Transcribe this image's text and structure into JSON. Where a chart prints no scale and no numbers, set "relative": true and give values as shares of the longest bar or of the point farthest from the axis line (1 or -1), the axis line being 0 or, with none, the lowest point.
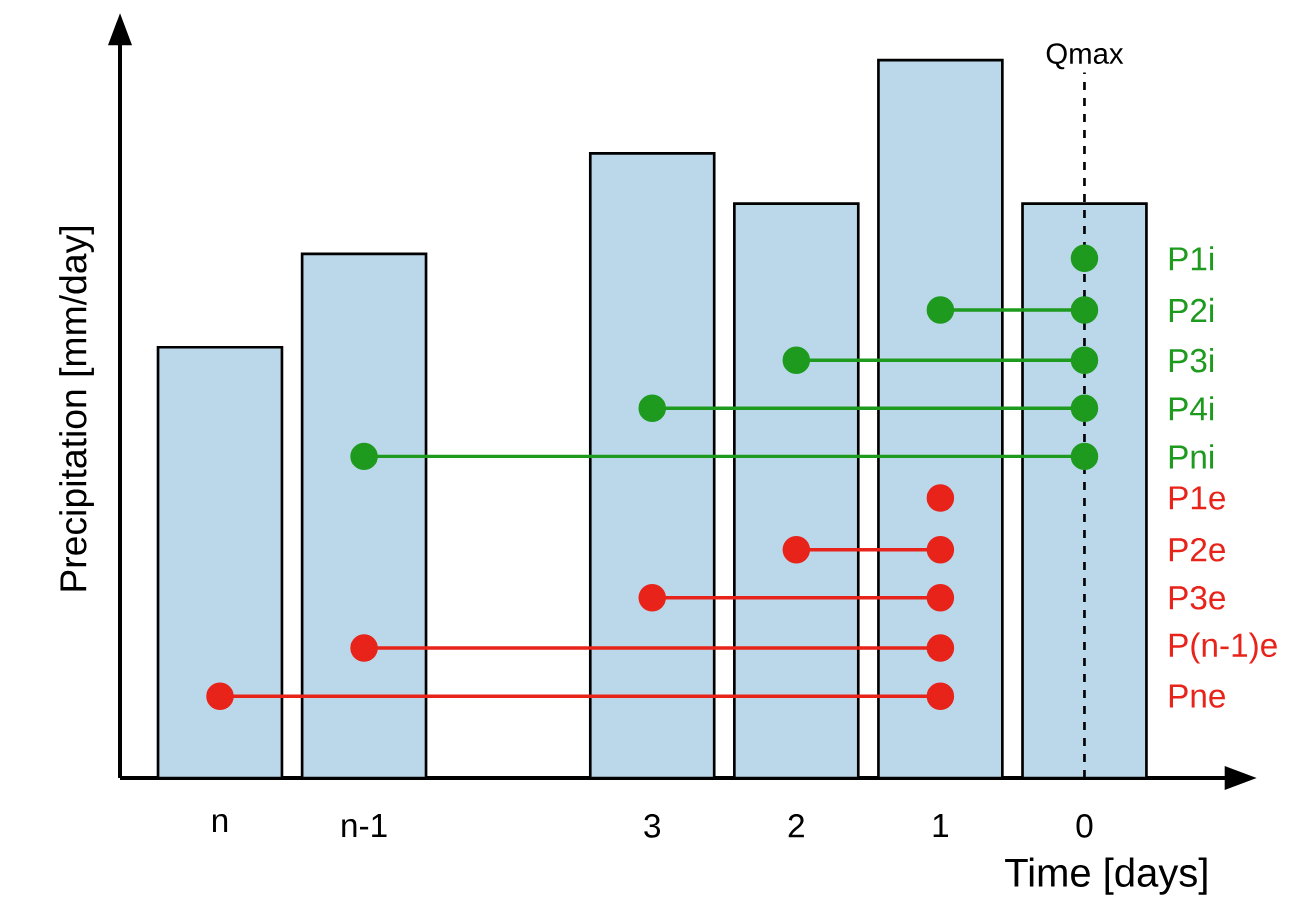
{
  "chart_data": {
    "type": "bar",
    "relative": true,
    "xlabel": "Time [days]",
    "ylabel": "Precipitation [mm/day]",
    "categories": [
      "n",
      "n-1",
      null,
      "3",
      "2",
      "1",
      "0"
    ],
    "marker": "circle",
    "ref_lines": [
      {
        "axis": "x",
        "value": "0",
        "label": "Qmax",
        "line_style": "dashed",
        "color": "#000000"
      }
    ],
    "series": [
      {
        "color": "#bad8ea",
        "values": [
          0.6,
          0.73,
          null,
          0.87,
          0.8,
          1,
          0.8
        ]
      },
      {
        "type": "line",
        "name": "P1i",
        "color": "#1e9a1e",
        "x": [
          "0"
        ],
        "values": [
          0.724
        ]
      },
      {
        "type": "line",
        "name": "P2i",
        "color": "#1e9a1e",
        "x": [
          "1",
          "0"
        ],
        "values": [
          0.652,
          0.652
        ]
      },
      {
        "type": "line",
        "name": "P3i",
        "color": "#1e9a1e",
        "x": [
          "2",
          "0"
        ],
        "values": [
          0.582,
          0.582
        ]
      },
      {
        "type": "line",
        "name": "P4i",
        "color": "#1e9a1e",
        "x": [
          "3",
          "0"
        ],
        "values": [
          0.515,
          0.515
        ]
      },
      {
        "type": "line",
        "name": "Pni",
        "color": "#1e9a1e",
        "x": [
          "n-1",
          "0"
        ],
        "values": [
          0.448,
          0.448
        ]
      },
      {
        "type": "line",
        "name": "P1e",
        "color": "#e8231a",
        "x": [
          "1"
        ],
        "values": [
          0.39
        ]
      },
      {
        "type": "line",
        "name": "P2e",
        "color": "#e8231a",
        "x": [
          "2",
          "1"
        ],
        "values": [
          0.318,
          0.318
        ]
      },
      {
        "type": "line",
        "name": "P3e",
        "color": "#e8231a",
        "x": [
          "3",
          "1"
        ],
        "values": [
          0.251,
          0.251
        ]
      },
      {
        "type": "line",
        "name": "P(n-1)e",
        "color": "#e8231a",
        "x": [
          "n-1",
          "1"
        ],
        "values": [
          0.181,
          0.181
        ]
      },
      {
        "type": "line",
        "name": "Pne",
        "color": "#e8231a",
        "x": [
          "n",
          "1"
        ],
        "values": [
          0.114,
          0.114
        ]
      }
    ]
  }
}
